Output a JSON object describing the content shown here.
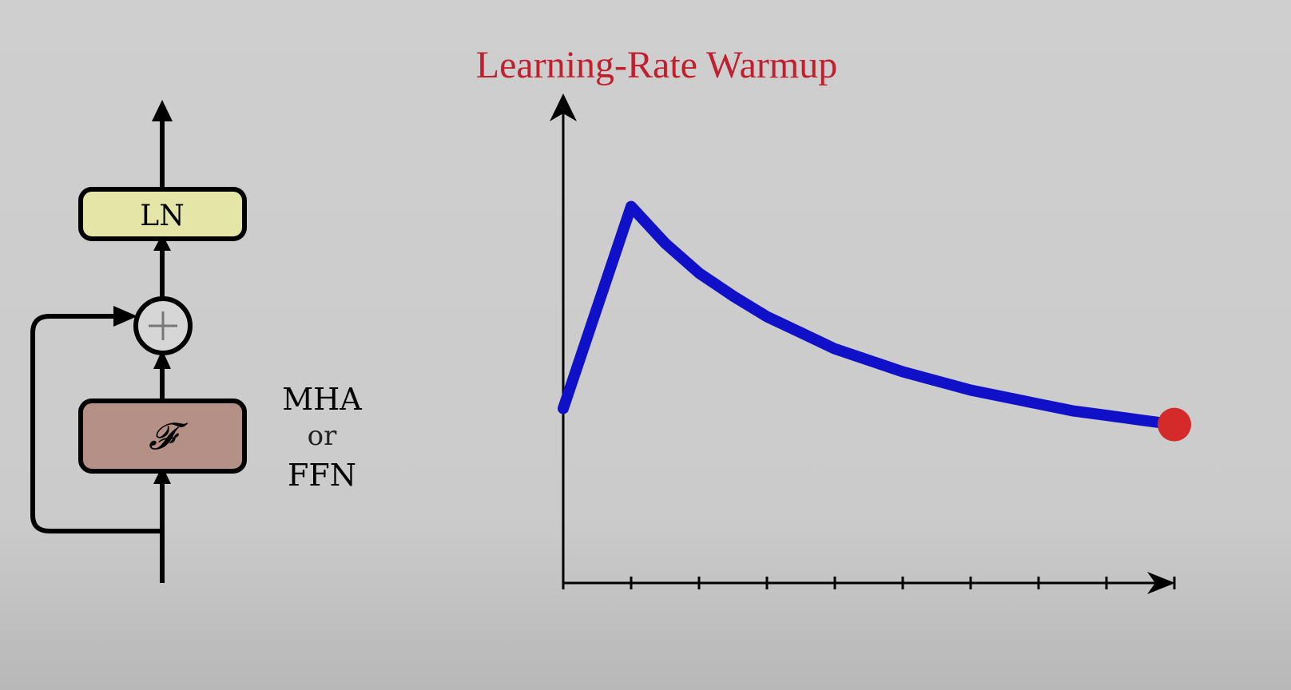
{
  "title": "Learning-Rate Warmup",
  "colors": {
    "title": "#c0202e",
    "curve": "#1010c8",
    "marker": "#d42a2a",
    "ln_fill": "#e3e6a6",
    "f_fill": "#b59086",
    "background": "#cccccc"
  },
  "block_diagram": {
    "ln_label": "LN",
    "f_label": "𝓕",
    "plus_symbol": "+",
    "side_label": {
      "line1": "MHA",
      "line2": "or",
      "line3": "FFN"
    }
  },
  "chart_data": {
    "type": "line",
    "title": "Learning-Rate Warmup",
    "x_ticks": 9,
    "xlim": [
      0,
      9
    ],
    "ylim": [
      0,
      1
    ],
    "series": [
      {
        "x": [
          0,
          1,
          1.5,
          2,
          2.5,
          3,
          3.5,
          4,
          4.5,
          5,
          5.5,
          6,
          6.5,
          7,
          7.5,
          8,
          8.5,
          9
        ],
        "y": [
          0.38,
          0.82,
          0.74,
          0.675,
          0.625,
          0.58,
          0.545,
          0.51,
          0.485,
          0.46,
          0.44,
          0.42,
          0.405,
          0.39,
          0.375,
          0.365,
          0.355,
          0.345
        ]
      }
    ],
    "end_marker": {
      "x": 9,
      "y": 0.345
    }
  }
}
